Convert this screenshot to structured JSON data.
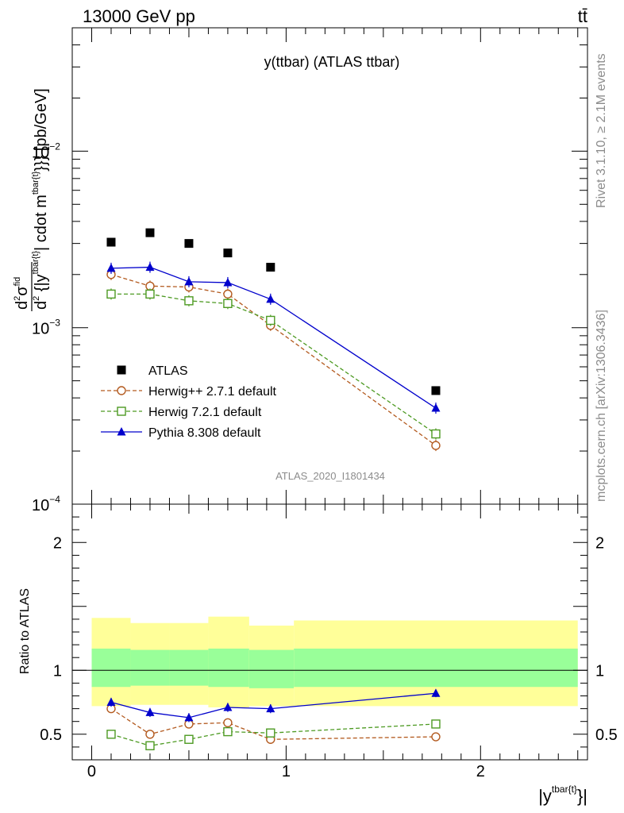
{
  "header": {
    "left": "13000 GeV pp",
    "right": "tt̄"
  },
  "side_labels": {
    "rivet": "Rivet 3.1.10, ≥ 2.1M events",
    "mcplots": "mcplots.cern.ch [arXiv:1306.3436]"
  },
  "chart_data": [
    {
      "type": "scatter",
      "title": "y(ttbar) (ATLAS ttbar)",
      "analysis_id": "ATLAS_2020_I1801434",
      "ylabel": "d²σ^fid / d²{|y^{tbar{t}}| cdot m^{tbar{t}}}} [pb/GeV]",
      "ylabel_parts": {
        "d1": "d",
        "sup1": "2",
        "sigma": "σ",
        "sup_fid": "fid",
        "d2": "d",
        "sup2": "2",
        "brace": " {|y",
        "sup_y": "tbar{t}",
        "mid": "| cdot m",
        "sup_m": "tbar{t}",
        "tail": "}}} [pb/GeV]"
      },
      "yscale": "log",
      "ylim": [
        0.0001,
        0.05
      ],
      "xlim": [
        -0.1,
        2.55
      ],
      "y_ticks": [
        {
          "value": 0.01,
          "base": "10",
          "exp": "−2"
        },
        {
          "value": 0.001,
          "base": "10",
          "exp": "−3"
        },
        {
          "value": 0.0001,
          "base": "10",
          "exp": "−4"
        }
      ],
      "legend_position": "lower-left",
      "series": [
        {
          "name": "ATLAS",
          "color": "#000000",
          "marker": "square-filled",
          "line": "none",
          "x": [
            0.1,
            0.3,
            0.5,
            0.7,
            0.92,
            1.77
          ],
          "y": [
            0.00305,
            0.00345,
            0.003,
            0.00265,
            0.0022,
            0.00044
          ]
        },
        {
          "name": "Herwig++ 2.7.1 default",
          "color": "#b35a1f",
          "marker": "circle-open",
          "line": "dashed",
          "x": [
            0.1,
            0.3,
            0.5,
            0.7,
            0.92,
            1.77
          ],
          "y": [
            0.002,
            0.00172,
            0.0017,
            0.00155,
            0.00103,
            0.000215
          ]
        },
        {
          "name": "Herwig 7.2.1 default",
          "color": "#4d9a22",
          "marker": "square-open",
          "line": "dashed",
          "x": [
            0.1,
            0.3,
            0.5,
            0.7,
            0.92,
            1.77
          ],
          "y": [
            0.00155,
            0.00155,
            0.00142,
            0.00137,
            0.0011,
            0.00025
          ]
        },
        {
          "name": "Pythia 8.308 default",
          "color": "#0000cc",
          "marker": "triangle-filled",
          "line": "solid",
          "x": [
            0.1,
            0.3,
            0.5,
            0.7,
            0.92,
            1.77
          ],
          "y": [
            0.00217,
            0.0022,
            0.00182,
            0.0018,
            0.00145,
            0.00035
          ]
        }
      ]
    },
    {
      "type": "scatter",
      "ylabel": "Ratio to ATLAS",
      "xlabel_parts": {
        "main": "|y",
        "sup": "tbar{t}",
        "tail": "}|"
      },
      "ylim": [
        0.3,
        2.3
      ],
      "xlim": [
        -0.1,
        2.55
      ],
      "x_ticks": [
        {
          "value": 0,
          "label": "0"
        },
        {
          "value": 1,
          "label": "1"
        },
        {
          "value": 2,
          "label": "2"
        }
      ],
      "y_ticks": [
        {
          "value": 0.5,
          "label": "0.5"
        },
        {
          "value": 1,
          "label": "1"
        },
        {
          "value": 2,
          "label": "2"
        }
      ],
      "reference_line": 1,
      "bands": [
        {
          "x0": 0.0,
          "x1": 0.2,
          "inner": [
            0.87,
            1.17
          ],
          "outer": [
            0.72,
            1.41
          ]
        },
        {
          "x0": 0.2,
          "x1": 0.4,
          "inner": [
            0.88,
            1.16
          ],
          "outer": [
            0.73,
            1.37
          ]
        },
        {
          "x0": 0.4,
          "x1": 0.6,
          "inner": [
            0.88,
            1.16
          ],
          "outer": [
            0.73,
            1.37
          ]
        },
        {
          "x0": 0.6,
          "x1": 0.81,
          "inner": [
            0.87,
            1.17
          ],
          "outer": [
            0.71,
            1.42
          ]
        },
        {
          "x0": 0.81,
          "x1": 1.04,
          "inner": [
            0.86,
            1.16
          ],
          "outer": [
            0.72,
            1.35
          ]
        },
        {
          "x0": 1.04,
          "x1": 2.5,
          "inner": [
            0.87,
            1.17
          ],
          "outer": [
            0.72,
            1.39
          ]
        }
      ],
      "band_colors": {
        "inner": "#99ff99",
        "outer": "#ffff99"
      },
      "series": [
        {
          "name": "Herwig++ 2.7.1 default",
          "color": "#b35a1f",
          "marker": "circle-open",
          "line": "dashed",
          "x": [
            0.1,
            0.3,
            0.5,
            0.7,
            0.92,
            1.77
          ],
          "y": [
            0.7,
            0.5,
            0.58,
            0.59,
            0.46,
            0.48
          ],
          "err": [
            0.03,
            0.03,
            0.03,
            0.03,
            0.03,
            0.03
          ]
        },
        {
          "name": "Herwig 7.2.1 default",
          "color": "#4d9a22",
          "marker": "square-open",
          "line": "dashed",
          "x": [
            0.1,
            0.3,
            0.5,
            0.7,
            0.92,
            1.77
          ],
          "y": [
            0.5,
            0.41,
            0.46,
            0.52,
            0.51,
            0.58
          ],
          "err": [
            0.03,
            0.03,
            0.03,
            0.03,
            0.03,
            0.03
          ]
        },
        {
          "name": "Pythia 8.308 default",
          "color": "#0000cc",
          "marker": "triangle-filled",
          "line": "solid",
          "x": [
            0.1,
            0.3,
            0.5,
            0.7,
            0.92,
            1.77
          ],
          "y": [
            0.75,
            0.67,
            0.63,
            0.71,
            0.7,
            0.82
          ],
          "err": [
            0.035,
            0.035,
            0.035,
            0.035,
            0.035,
            0.03
          ]
        }
      ]
    }
  ]
}
